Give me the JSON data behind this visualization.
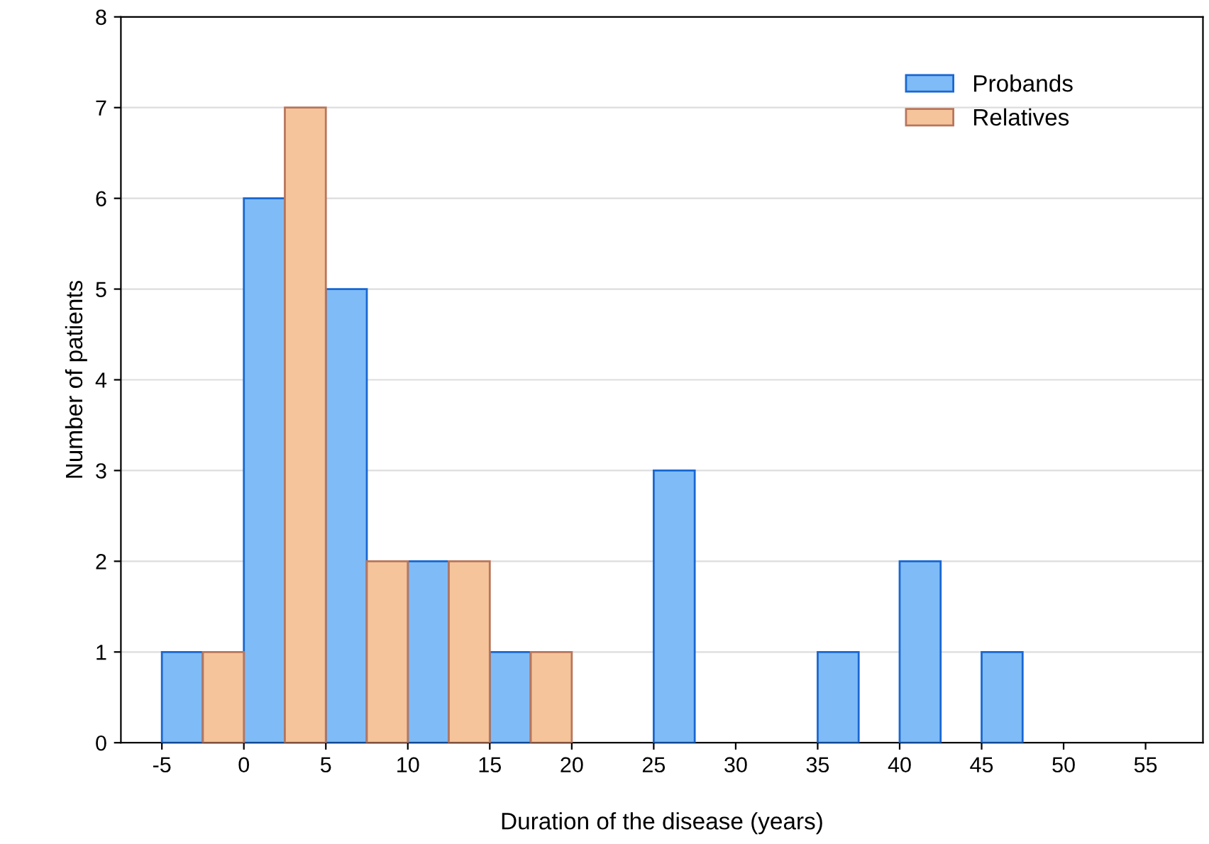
{
  "chart_data": {
    "type": "histogram",
    "xlabel": "Duration of the disease (years)",
    "ylabel": "Number of patients",
    "bins": [
      -5,
      -2.5,
      0,
      2.5,
      5,
      7.5,
      10,
      12.5,
      15,
      17.5,
      20,
      22.5,
      25,
      27.5,
      30,
      32.5,
      35,
      37.5,
      40,
      42.5,
      45,
      47.5
    ],
    "series": [
      {
        "name": "Probands",
        "color": "#7fbcf7",
        "values": [
          1,
          0,
          6,
          0,
          5,
          0,
          2,
          0,
          1,
          0,
          0,
          0,
          3,
          0,
          0,
          0,
          1,
          0,
          2,
          0,
          1
        ]
      },
      {
        "name": "Relatives",
        "color": "#f6c49a",
        "values": [
          0,
          1,
          0,
          7,
          0,
          2,
          0,
          2,
          0,
          1,
          0,
          0,
          0,
          0,
          0,
          0,
          0,
          0,
          0,
          0,
          0
        ]
      }
    ],
    "xlim": [
      -7.5,
      58.5
    ],
    "xticks": [
      -5,
      0,
      5,
      10,
      15,
      20,
      25,
      30,
      35,
      40,
      45,
      50,
      55
    ],
    "ylim": [
      0,
      8
    ],
    "yticks": [
      0,
      1,
      2,
      3,
      4,
      5,
      6,
      7,
      8
    ],
    "grid": "y",
    "legend": "top right"
  }
}
